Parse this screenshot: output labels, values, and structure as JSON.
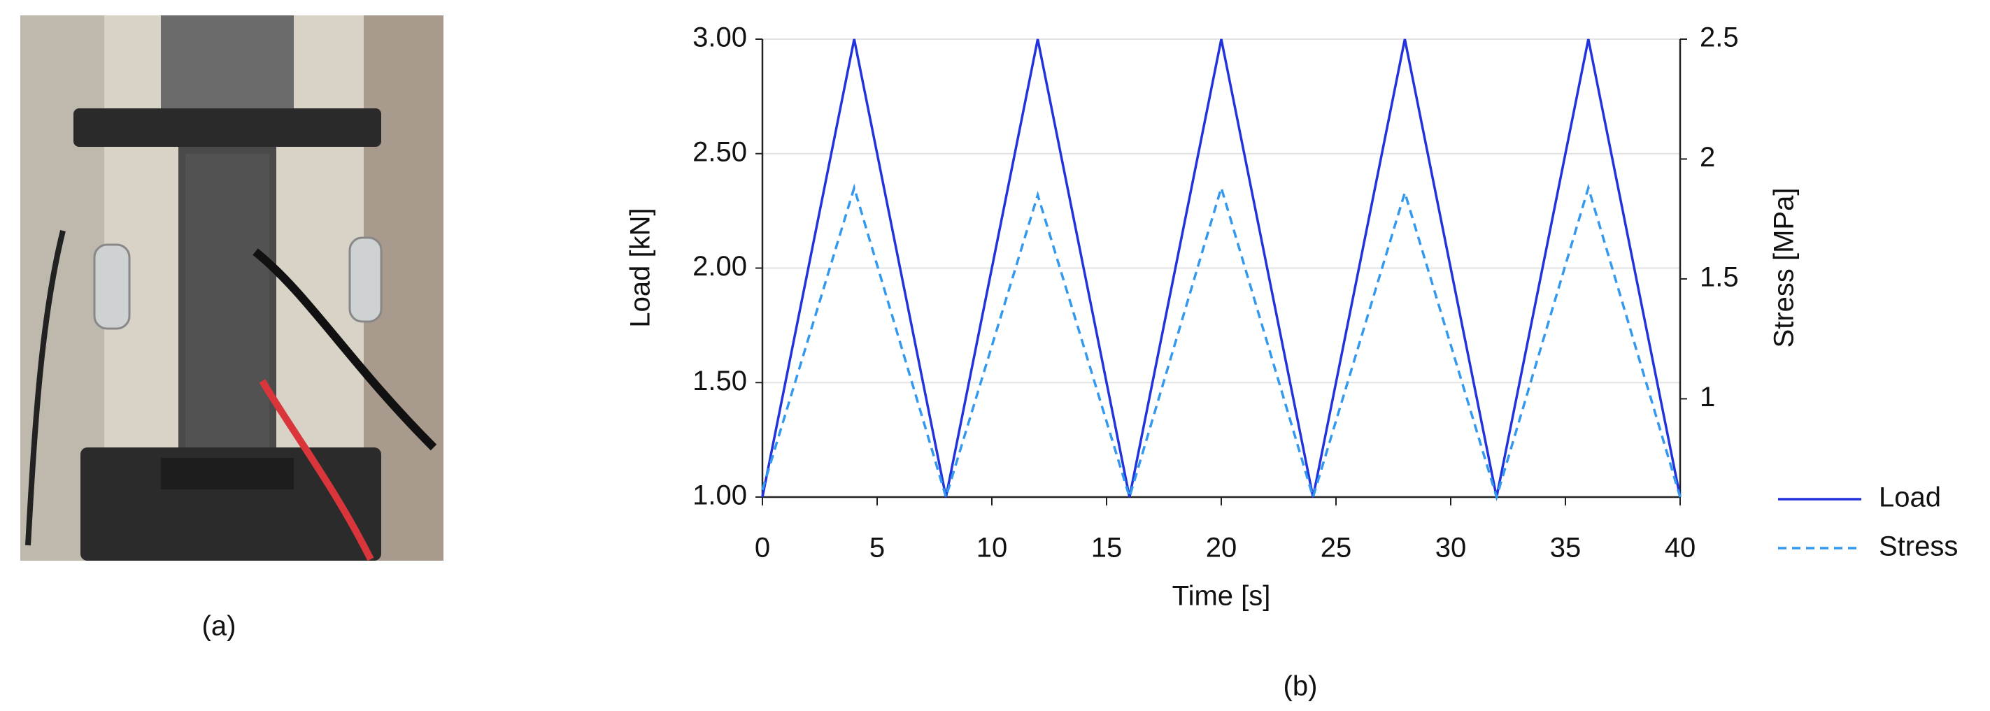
{
  "chart_data": {
    "type": "line",
    "x": [
      0,
      4,
      8,
      12,
      16,
      20,
      24,
      28,
      32,
      36,
      40
    ],
    "x_label": "Time [s]",
    "y_label": "Load [kN]",
    "y2_label": "Stress [MPa]",
    "xlim": [
      0,
      40
    ],
    "xticks": [
      0,
      5,
      10,
      15,
      20,
      25,
      30,
      35,
      40
    ],
    "ylim": [
      1,
      3
    ],
    "yticks": [
      {
        "value": 1,
        "label": "1.00"
      },
      {
        "value": 1.5,
        "label": "1.50"
      },
      {
        "value": 2,
        "label": "2.00"
      },
      {
        "value": 2.5,
        "label": "2.50"
      },
      {
        "value": 3,
        "label": "3.00"
      }
    ],
    "y2lim": [
      0.59,
      2.5
    ],
    "y2ticks": [
      1,
      1.5,
      2,
      2.5
    ],
    "grid": true,
    "legend": "lower-right-outside",
    "series": [
      {
        "name": "Load",
        "color": "#2233dd",
        "dash": "solid",
        "values": [
          1,
          3,
          1,
          3,
          1,
          3,
          1,
          3,
          1,
          3,
          1
        ]
      },
      {
        "name": "Stress",
        "color": "#3399ee",
        "dash": "dashed",
        "axis": "y2",
        "values": [
          0.62,
          1.88,
          0.59,
          1.85,
          0.59,
          1.88,
          0.59,
          1.86,
          0.59,
          1.88,
          0.59
        ]
      }
    ]
  },
  "captions": {
    "a": "(a)",
    "b": "(b)"
  }
}
